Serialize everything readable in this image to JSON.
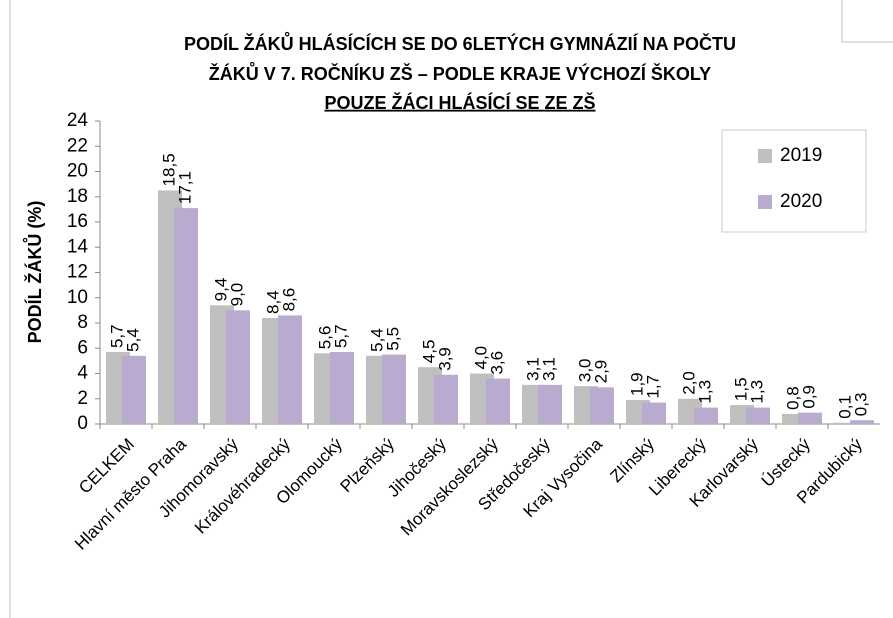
{
  "chart_data": {
    "type": "bar",
    "title": [
      "PODÍL  ŽÁKŮ HLÁSÍCÍCH SE DO 6LETÝCH GYMNÁZIÍ NA  POČTU",
      "ŽÁKŮ V 7. ROČNÍKU ZŠ – PODLE KRAJE VÝCHOZÍ ŠKOLY"
    ],
    "subtitle": "POUZE ŽÁCI HLÁSÍCÍ SE ZE ZŠ",
    "y_label": "PODÍL ŽÁKŮ (%)",
    "categories": [
      "CELKEM",
      "Hlavní město Praha",
      "Jihomoravský",
      "Královéhradecký",
      "Olomoucký",
      "Plzeňský",
      "Jihočeský",
      "Moravskoslezský",
      "Středočeský",
      "Kraj Vysočina",
      "Zlínský",
      "Liberecký",
      "Karlovarský",
      "Ústecký",
      "Pardubický"
    ],
    "series": [
      {
        "name": "2019",
        "color": "#bfbfbf",
        "values": [
          5.7,
          18.5,
          9.4,
          8.4,
          5.6,
          5.4,
          4.5,
          4.0,
          3.1,
          3.0,
          1.9,
          2.0,
          1.5,
          0.8,
          0.1
        ],
        "value_labels": [
          "5,7",
          "18,5",
          "9,4",
          "8,4",
          "5,6",
          "5,4",
          "4,5",
          "4,0",
          "3,1",
          "3,0",
          "1,9",
          "2,0",
          "1,5",
          "0,8",
          "0,1"
        ]
      },
      {
        "name": "2020",
        "color": "#b9aad0",
        "values": [
          5.4,
          17.1,
          9.0,
          8.6,
          5.7,
          5.5,
          3.9,
          3.6,
          3.1,
          2.9,
          1.7,
          1.3,
          1.3,
          0.9,
          0.3
        ],
        "value_labels": [
          "5,4",
          "17,1",
          "9,0",
          "8,6",
          "5,7",
          "5,5",
          "3,9",
          "3,6",
          "3,1",
          "2,9",
          "1,7",
          "1,3",
          "1,3",
          "0,9",
          "0,3"
        ]
      }
    ],
    "ylim": [
      0,
      24
    ],
    "yticks": [
      0,
      2,
      4,
      6,
      8,
      10,
      12,
      14,
      16,
      18,
      20,
      22,
      24
    ],
    "grid": false,
    "legend": "top-right"
  }
}
